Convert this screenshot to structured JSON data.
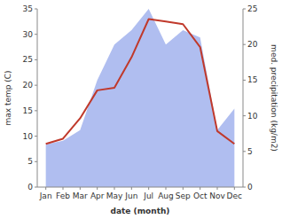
{
  "chart_data": {
    "type": "line",
    "categories": [
      "Jan",
      "Feb",
      "Mar",
      "Apr",
      "May",
      "Jun",
      "Jul",
      "Aug",
      "Sep",
      "Oct",
      "Nov",
      "Dec"
    ],
    "xlabel": "date (month)",
    "ylabel": "max temp (C)",
    "y2label": "med. precipitation (kg/m2)",
    "series": [
      {
        "type": "area",
        "axis": "y2",
        "color": "#b0bef0",
        "values": [
          6.0,
          6.5,
          8.0,
          15.0,
          20.0,
          22.0,
          25.0,
          20.0,
          22.0,
          21.0,
          8.0,
          11.0
        ]
      },
      {
        "type": "line",
        "color": "#c0392b",
        "values": [
          8.5,
          9.5,
          13.5,
          19.0,
          19.5,
          25.5,
          33.0,
          32.5,
          32.0,
          27.5,
          11.0,
          8.5
        ]
      }
    ],
    "ylim": [
      0,
      35
    ],
    "yticks": [
      0,
      5,
      10,
      15,
      20,
      25,
      30,
      35
    ],
    "y2lim": [
      0,
      25
    ],
    "y2ticks": [
      0,
      5,
      10,
      15,
      20,
      25
    ],
    "grid": false
  }
}
